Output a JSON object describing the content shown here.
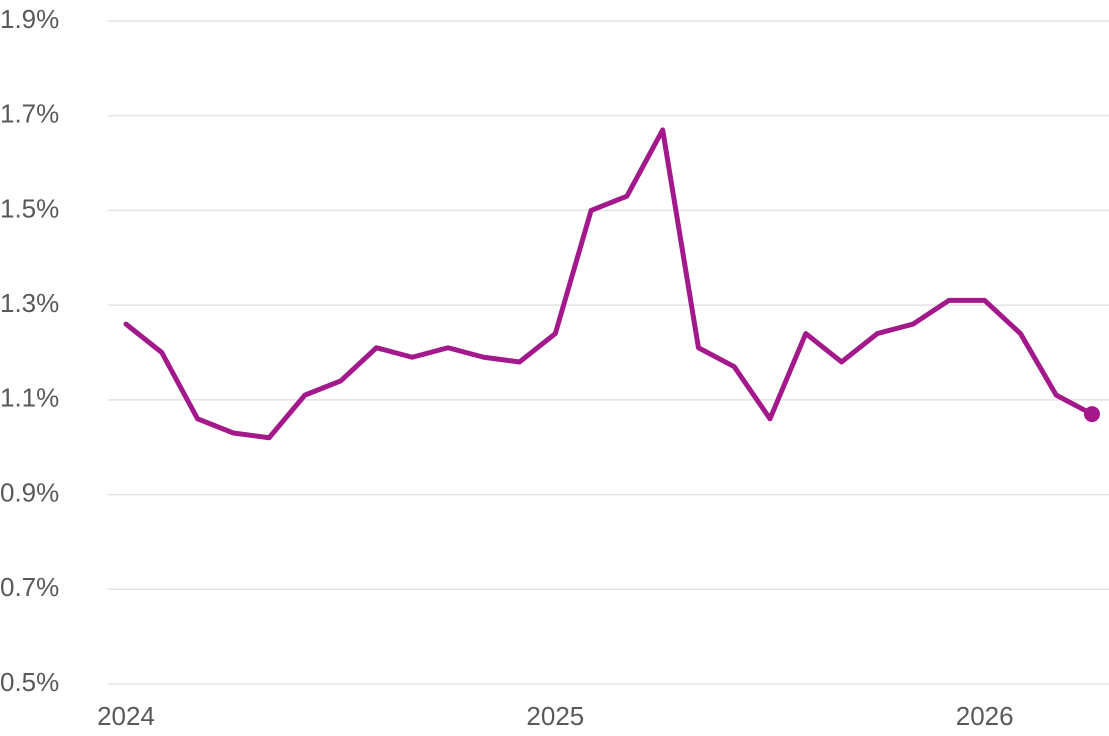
{
  "chart_data": {
    "type": "line",
    "categories": [
      "2024",
      null,
      null,
      null,
      null,
      null,
      null,
      null,
      null,
      null,
      null,
      null,
      "2025",
      null,
      null,
      null,
      null,
      null,
      null,
      null,
      null,
      null,
      null,
      null,
      "2026",
      null,
      null,
      null
    ],
    "series": [
      {
        "color": "#a3198c",
        "values": [
          1.26,
          1.2,
          1.06,
          1.03,
          1.02,
          1.11,
          1.14,
          1.21,
          1.19,
          1.21,
          1.19,
          1.18,
          1.24,
          1.5,
          1.53,
          1.67,
          1.21,
          1.17,
          1.06,
          1.24,
          1.18,
          1.24,
          1.26,
          1.31,
          1.31,
          1.24,
          1.11,
          1.07
        ]
      }
    ],
    "ylim": [
      0.5,
      1.9
    ],
    "yticks": [
      {
        "value": 0.5,
        "label": "0.5%"
      },
      {
        "value": 0.7,
        "label": "0.7%"
      },
      {
        "value": 0.9,
        "label": "0.9%"
      },
      {
        "value": 1.1,
        "label": "1.1%"
      },
      {
        "value": 1.3,
        "label": "1.3%"
      },
      {
        "value": 1.5,
        "label": "1.5%"
      },
      {
        "value": 1.7,
        "label": "1.7%"
      },
      {
        "value": 1.9,
        "label": "1.9%"
      }
    ],
    "grid": true,
    "marker_last": true
  }
}
